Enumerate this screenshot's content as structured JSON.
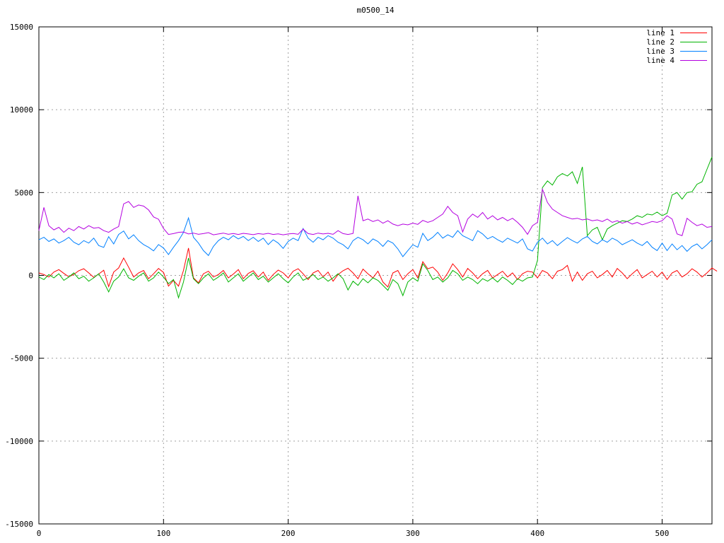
{
  "title": "m0500_14",
  "chart_data": {
    "type": "line",
    "title": "m0500_14",
    "xlabel": "",
    "ylabel": "",
    "xlim": [
      0,
      540
    ],
    "ylim": [
      -15000,
      15000
    ],
    "x_ticks": [
      0,
      100,
      200,
      300,
      400,
      500
    ],
    "y_ticks": [
      -15000,
      -10000,
      -5000,
      0,
      5000,
      10000,
      15000
    ],
    "grid": true,
    "grid_style": "dotted",
    "grid_color": "#a0a0a0",
    "border_color": "#000000",
    "legend_position": "top-right",
    "x_step": 4,
    "series": [
      {
        "name": "line 1",
        "color": "#ff0000",
        "values": [
          150,
          50,
          -100,
          200,
          350,
          120,
          -80,
          60,
          280,
          400,
          150,
          -120,
          80,
          310,
          -680,
          200,
          450,
          1050,
          500,
          -100,
          150,
          300,
          -200,
          100,
          420,
          180,
          -650,
          -300,
          -650,
          300,
          1650,
          -150,
          -450,
          100,
          250,
          -100,
          50,
          300,
          -150,
          80,
          350,
          -200,
          120,
          280,
          -100,
          200,
          -300,
          50,
          320,
          150,
          -150,
          250,
          400,
          100,
          -250,
          150,
          300,
          -100,
          200,
          -350,
          50,
          280,
          430,
          150,
          -200,
          380,
          100,
          -150,
          250,
          -400,
          -700,
          150,
          300,
          -250,
          100,
          350,
          -150,
          830,
          400,
          500,
          200,
          -300,
          150,
          700,
          350,
          -100,
          420,
          150,
          -200,
          100,
          300,
          -150,
          50,
          250,
          -100,
          150,
          -250,
          100,
          250,
          200,
          -150,
          300,
          150,
          -200,
          250,
          350,
          600,
          -350,
          200,
          -300,
          100,
          250,
          -150,
          50,
          300,
          -100,
          420,
          150,
          -200,
          100,
          350,
          -150,
          50,
          250,
          -100,
          200,
          -250,
          150,
          300,
          -100,
          100,
          400,
          200,
          -100,
          150,
          450,
          250
        ]
      },
      {
        "name": "line 2",
        "color": "#00b400",
        "values": [
          -100,
          -250,
          50,
          -150,
          100,
          -300,
          -100,
          150,
          -200,
          -50,
          -350,
          -150,
          100,
          -400,
          -1000,
          -350,
          -100,
          400,
          -150,
          -300,
          -50,
          150,
          -350,
          -150,
          200,
          -100,
          -500,
          -250,
          -1350,
          -400,
          1050,
          -200,
          -500,
          -150,
          100,
          -300,
          -100,
          150,
          -400,
          -150,
          100,
          -350,
          -100,
          150,
          -250,
          -50,
          -400,
          -150,
          100,
          -200,
          -450,
          -100,
          150,
          -300,
          -150,
          50,
          -250,
          -100,
          -350,
          -150,
          100,
          -200,
          -880,
          -350,
          -600,
          -200,
          -450,
          -150,
          -300,
          -600,
          -900,
          -250,
          -500,
          -1220,
          -400,
          -150,
          -350,
          700,
          300,
          -250,
          -100,
          -400,
          -150,
          300,
          100,
          -300,
          -100,
          -250,
          -500,
          -200,
          -350,
          -150,
          -400,
          -100,
          -300,
          -550,
          -200,
          -350,
          -150,
          -100,
          900,
          5300,
          5700,
          5450,
          5950,
          6150,
          6000,
          6250,
          5550,
          6550,
          2400,
          2750,
          2900,
          2150,
          2800,
          3000,
          3150,
          3300,
          3250,
          3400,
          3600,
          3500,
          3700,
          3650,
          3820,
          3600,
          3750,
          4850,
          5000,
          4600,
          5000,
          5050,
          5500,
          5650,
          6400,
          7150
        ]
      },
      {
        "name": "line 3",
        "color": "#0080ff",
        "values": [
          2150,
          2300,
          2050,
          2200,
          1950,
          2100,
          2300,
          2000,
          1850,
          2100,
          1950,
          2250,
          1800,
          1690,
          2340,
          1900,
          2470,
          2680,
          2200,
          2450,
          2100,
          1860,
          1700,
          1480,
          1860,
          1650,
          1260,
          1700,
          2100,
          2600,
          3470,
          2300,
          1950,
          1500,
          1200,
          1750,
          2100,
          2300,
          2150,
          2400,
          2200,
          2350,
          2100,
          2300,
          2050,
          2250,
          1860,
          2150,
          1950,
          1630,
          2050,
          2250,
          2100,
          2830,
          2250,
          2000,
          2300,
          2150,
          2400,
          2250,
          2000,
          1850,
          1600,
          2100,
          2300,
          2150,
          1900,
          2200,
          2050,
          1750,
          2100,
          1950,
          1600,
          1130,
          1500,
          1850,
          1700,
          2540,
          2100,
          2300,
          2600,
          2250,
          2450,
          2300,
          2700,
          2400,
          2250,
          2100,
          2700,
          2500,
          2200,
          2350,
          2150,
          2000,
          2250,
          2100,
          1950,
          2200,
          1600,
          1470,
          2000,
          2250,
          1900,
          2100,
          1800,
          2050,
          2280,
          2100,
          1950,
          2200,
          2350,
          2050,
          1900,
          2150,
          2000,
          2250,
          2100,
          1850,
          2000,
          2150,
          1950,
          1800,
          2050,
          1700,
          1500,
          1950,
          1500,
          1900,
          1550,
          1800,
          1450,
          1750,
          1900,
          1600,
          1850,
          2150
        ]
      },
      {
        "name": "line 4",
        "color": "#b400e0",
        "values": [
          2700,
          4100,
          3000,
          2750,
          2900,
          2600,
          2850,
          2700,
          2950,
          2800,
          3000,
          2850,
          2890,
          2700,
          2600,
          2800,
          2950,
          4320,
          4460,
          4100,
          4250,
          4180,
          3950,
          3530,
          3390,
          2830,
          2470,
          2520,
          2600,
          2620,
          2500,
          2550,
          2480,
          2520,
          2580,
          2450,
          2500,
          2550,
          2480,
          2530,
          2470,
          2540,
          2500,
          2460,
          2520,
          2490,
          2540,
          2470,
          2510,
          2450,
          2500,
          2530,
          2480,
          2790,
          2520,
          2470,
          2550,
          2500,
          2540,
          2480,
          2700,
          2520,
          2470,
          2530,
          4800,
          3300,
          3400,
          3250,
          3350,
          3150,
          3300,
          3100,
          3000,
          3100,
          3050,
          3150,
          3080,
          3320,
          3200,
          3300,
          3500,
          3700,
          4170,
          3800,
          3600,
          2620,
          3400,
          3700,
          3500,
          3800,
          3400,
          3600,
          3350,
          3500,
          3300,
          3450,
          3200,
          2900,
          2480,
          3000,
          3200,
          5200,
          4400,
          4000,
          3800,
          3600,
          3500,
          3400,
          3450,
          3350,
          3400,
          3300,
          3350,
          3250,
          3400,
          3200,
          3300,
          3150,
          3250,
          3100,
          3200,
          3050,
          3150,
          3250,
          3200,
          3300,
          3600,
          3400,
          2500,
          2400,
          3450,
          3200,
          3000,
          3100,
          2900,
          2950
        ]
      }
    ]
  }
}
